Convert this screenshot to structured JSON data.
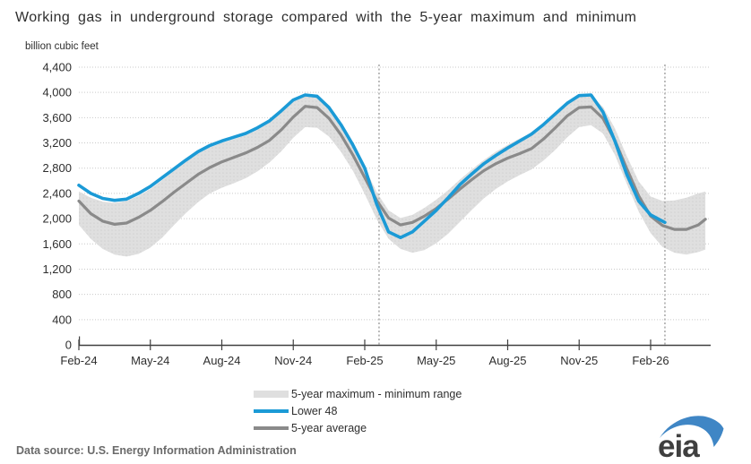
{
  "title": "Working gas in underground storage compared with the 5-year maximum and minimum",
  "unit_label": "billion cubic feet",
  "source_note": "Data source: U.S. Energy Information Administration",
  "logo_text": "eia",
  "colors": {
    "lower48": "#1b9ad6",
    "average": "#8a8a8a",
    "band": "#dfdfdf",
    "band_dot": "#d2d2d2",
    "gridline": "#c9c9c9",
    "boundary": "#b5b5b5",
    "axis": "#404040",
    "text": "#2e2e2e",
    "source": "#6a6a6a",
    "logo_text": "#3f3f3f",
    "logo_blue": "#3f86c5"
  },
  "legend": [
    {
      "label": "5-year maximum - minimum range",
      "swatch": "band"
    },
    {
      "label": "Lower 48",
      "swatch": "lower48"
    },
    {
      "label": "5-year average",
      "swatch": "average"
    }
  ],
  "chart_data": {
    "type": "area",
    "title": "Working gas in underground storage compared with the 5-year maximum and minimum",
    "ylabel": "billion cubic feet",
    "ylim": [
      0,
      4400
    ],
    "y_ticks": [
      0,
      400,
      800,
      1200,
      1600,
      2000,
      2400,
      2800,
      3200,
      3600,
      4000,
      4400
    ],
    "y_tick_labels": [
      "0",
      "400",
      "800",
      "1,200",
      "1,600",
      "2,000",
      "2,400",
      "2,800",
      "3,200",
      "3,600",
      "4,000",
      "4,400"
    ],
    "x_unit": "months after Feb-2024",
    "x_ticks": [
      0,
      3,
      6,
      9,
      12,
      15,
      18,
      21,
      24
    ],
    "x_tick_labels": [
      "Feb-24",
      "May-24",
      "Aug-24",
      "Nov-24",
      "Feb-25",
      "May-25",
      "Aug-25",
      "Nov-25",
      "Feb-26"
    ],
    "grid": "dotted horizontal",
    "legend_position": "bottom-center",
    "forecast_boundaries_x": [
      12.6,
      24.6
    ],
    "series": [
      {
        "name": "5-year maximum",
        "role": "band-top",
        "x_start": 0,
        "x_step": 0.5,
        "x_last": 26.3,
        "values": [
          2430,
          2330,
          2270,
          2250,
          2280,
          2360,
          2470,
          2610,
          2760,
          2900,
          3030,
          3130,
          3200,
          3260,
          3320,
          3410,
          3520,
          3680,
          3850,
          3940,
          3920,
          3750,
          3480,
          3170,
          2810,
          2420,
          2130,
          2010,
          2060,
          2170,
          2300,
          2450,
          2620,
          2780,
          2930,
          3060,
          3170,
          3270,
          3360,
          3500,
          3660,
          3820,
          3930,
          3940,
          3770,
          3430,
          2990,
          2590,
          2350,
          2280,
          2290,
          2330,
          2400,
          2430
        ]
      },
      {
        "name": "5-year minimum",
        "role": "band-bottom",
        "x_start": 0,
        "x_step": 0.5,
        "x_last": 26.3,
        "values": [
          1900,
          1680,
          1520,
          1430,
          1400,
          1440,
          1540,
          1700,
          1900,
          2090,
          2260,
          2400,
          2490,
          2560,
          2640,
          2750,
          2890,
          3070,
          3280,
          3450,
          3440,
          3300,
          3060,
          2760,
          2390,
          1990,
          1680,
          1520,
          1460,
          1500,
          1610,
          1760,
          1950,
          2140,
          2320,
          2470,
          2590,
          2690,
          2780,
          2920,
          3090,
          3290,
          3450,
          3480,
          3350,
          3010,
          2550,
          2110,
          1770,
          1550,
          1460,
          1430,
          1470,
          1510
        ]
      },
      {
        "name": "Lower 48",
        "role": "line",
        "x_start": 0,
        "x_step": 0.5,
        "x_last": 24.6,
        "values": [
          2530,
          2400,
          2320,
          2290,
          2310,
          2400,
          2510,
          2650,
          2790,
          2930,
          3060,
          3160,
          3230,
          3290,
          3350,
          3440,
          3550,
          3710,
          3880,
          3960,
          3940,
          3760,
          3490,
          3170,
          2800,
          2230,
          1790,
          1700,
          1790,
          1960,
          2130,
          2330,
          2540,
          2710,
          2870,
          3000,
          3120,
          3230,
          3340,
          3490,
          3660,
          3830,
          3950,
          3960,
          3690,
          3230,
          2700,
          2280,
          2060,
          1940
        ]
      },
      {
        "name": "5-year average",
        "role": "line",
        "x_start": 0,
        "x_step": 0.5,
        "x_last": 26.3,
        "values": [
          2280,
          2080,
          1960,
          1910,
          1930,
          2020,
          2130,
          2270,
          2420,
          2560,
          2700,
          2810,
          2900,
          2970,
          3040,
          3130,
          3240,
          3410,
          3610,
          3780,
          3760,
          3590,
          3330,
          3010,
          2650,
          2290,
          2010,
          1900,
          1940,
          2040,
          2160,
          2310,
          2470,
          2620,
          2760,
          2870,
          2960,
          3030,
          3110,
          3260,
          3440,
          3630,
          3760,
          3770,
          3590,
          3240,
          2790,
          2360,
          2040,
          1890,
          1830,
          1830,
          1900,
          1990
        ]
      }
    ]
  }
}
